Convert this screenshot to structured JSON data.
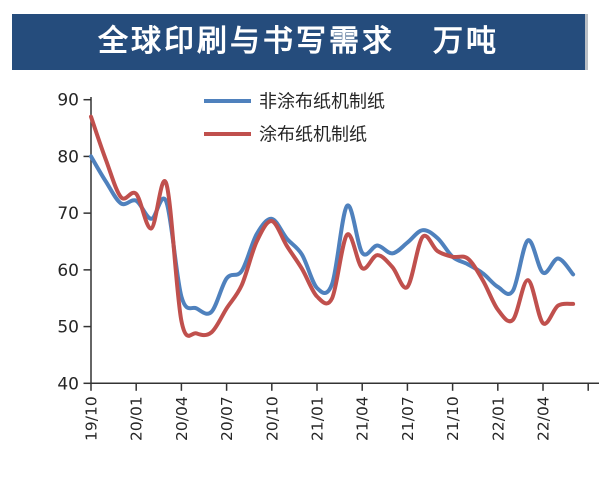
{
  "header": {
    "title": "全球印刷与书写需求",
    "unit": "万吨",
    "bar_color": "#254C7C",
    "text_color": "#ffffff"
  },
  "chart_data": {
    "type": "line",
    "title": "全球印刷与书写需求 万吨",
    "x": [
      "19/10",
      "19/11",
      "19/12",
      "20/01",
      "20/02",
      "20/03",
      "20/04",
      "20/05",
      "20/06",
      "20/07",
      "20/08",
      "20/09",
      "20/10",
      "20/11",
      "20/12",
      "21/01",
      "21/02",
      "21/03",
      "21/04",
      "21/05",
      "21/06",
      "21/07",
      "21/08",
      "21/09",
      "21/10",
      "21/11",
      "21/12",
      "22/01",
      "22/02",
      "22/03",
      "22/04",
      "22/05",
      "22/06"
    ],
    "x_tick_labels": [
      "19/10",
      "20/01",
      "20/04",
      "20/07",
      "20/10",
      "21/01",
      "21/04",
      "21/07",
      "21/10",
      "22/01",
      "22/04"
    ],
    "x_label_every": 3,
    "series": [
      {
        "name": "非涂布纸机制纸",
        "color": "#4f81bd",
        "values": [
          80.0,
          75.5,
          71.7,
          72.2,
          69.0,
          72.0,
          55.3,
          53.2,
          52.6,
          58.5,
          59.8,
          66.3,
          69.0,
          65.5,
          62.7,
          56.8,
          57.5,
          71.3,
          63.0,
          64.3,
          62.9,
          64.8,
          67.0,
          65.6,
          62.3,
          61.0,
          59.4,
          57.0,
          56.3,
          65.2,
          59.5,
          62.0,
          59.2
        ]
      },
      {
        "name": "涂布纸机制纸",
        "color": "#c0504d",
        "values": [
          87.0,
          79.3,
          72.8,
          73.4,
          67.3,
          75.2,
          51.0,
          48.8,
          49.0,
          53.2,
          57.3,
          65.0,
          68.6,
          64.2,
          60.2,
          55.3,
          55.0,
          66.2,
          60.3,
          62.6,
          60.5,
          57.0,
          65.8,
          63.3,
          62.3,
          62.0,
          58.2,
          53.0,
          51.2,
          58.2,
          50.6,
          53.7,
          54.0
        ]
      }
    ],
    "ylim": [
      40,
      90
    ],
    "ytick_step": 10,
    "yticks": [
      40,
      50,
      60,
      70,
      80,
      90
    ],
    "grid": false,
    "legend_position": "top-center",
    "axis_color": "#333333",
    "tick_label_color": "#262626",
    "xlabel": "",
    "ylabel": ""
  }
}
